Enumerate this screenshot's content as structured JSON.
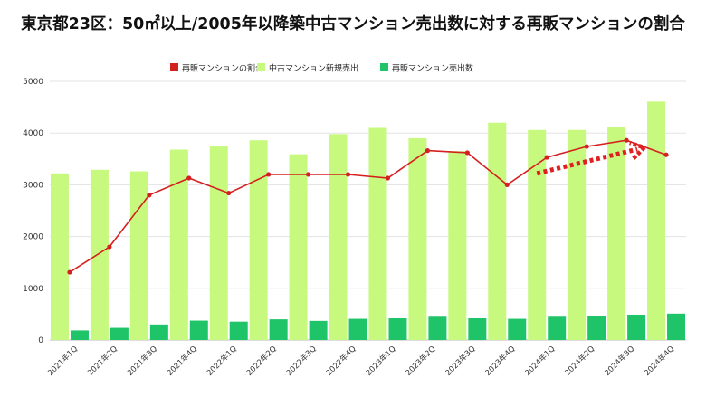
{
  "chart_data": {
    "type": "bar",
    "title": "東京都23区：50㎡以上/2005年以降築中古マンション売出数に対する再販マンションの割合",
    "categories": [
      "2021年1Q",
      "2021年2Q",
      "2021年3Q",
      "2021年4Q",
      "2022年1Q",
      "2022年2Q",
      "2022年3Q",
      "2022年4Q",
      "2023年1Q",
      "2023年2Q",
      "2023年3Q",
      "2023年4Q",
      "2024年1Q",
      "2024年2Q",
      "2024年3Q",
      "2024年4Q"
    ],
    "series": [
      {
        "name": "中古マンション新規売出",
        "kind": "bar",
        "color": "#c6f97d",
        "values": [
          3220,
          3290,
          3260,
          3680,
          3740,
          3860,
          3590,
          3980,
          4100,
          3900,
          3650,
          4200,
          4060,
          4060,
          4110,
          4610
        ]
      },
      {
        "name": "再販マンション売出数",
        "kind": "bar",
        "color": "#1ec467",
        "values": [
          185,
          235,
          300,
          375,
          355,
          400,
          370,
          410,
          420,
          450,
          420,
          410,
          450,
          470,
          490,
          510
        ]
      },
      {
        "name": "再販マンションの割合",
        "kind": "line",
        "color": "#d52020",
        "values": [
          1310,
          1800,
          2800,
          3130,
          2840,
          3200,
          3200,
          3200,
          3130,
          3660,
          3620,
          3000,
          3530,
          3740,
          3860,
          3580
        ]
      }
    ],
    "ylim": [
      0,
      5000
    ],
    "yticks": [
      0,
      1000,
      2000,
      3000,
      4000,
      5000
    ],
    "grid": true,
    "legend": "top-center",
    "annotation": {
      "type": "dotted-arrow",
      "color": "#e02020",
      "from": [
        11.75,
        3220
      ],
      "to": [
        14.45,
        3720
      ]
    }
  }
}
